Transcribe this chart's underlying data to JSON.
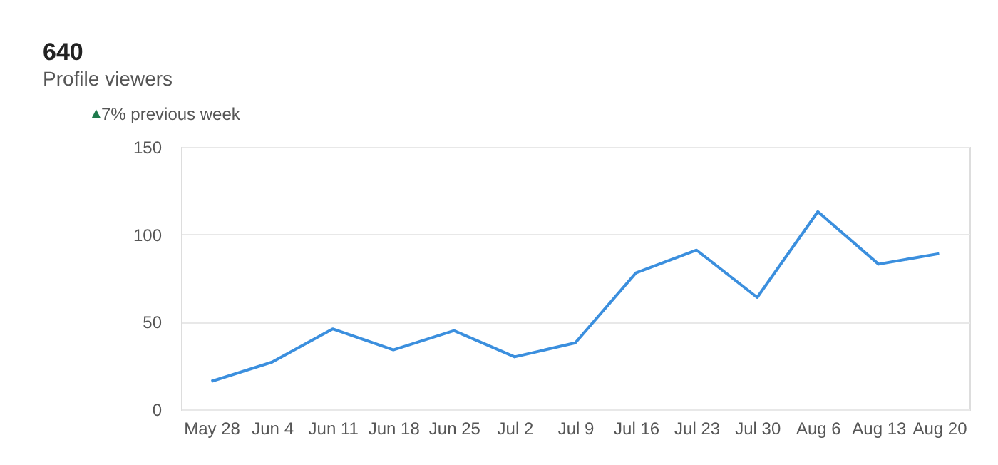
{
  "chart_data": {
    "type": "line",
    "title": "640",
    "subtitle": "Profile viewers",
    "annotations": [
      "▲7% previous week"
    ],
    "categories": [
      "May 28",
      "Jun 4",
      "Jun 11",
      "Jun 18",
      "Jun 25",
      "Jul 2",
      "Jul 9",
      "Jul 16",
      "Jul 23",
      "Jul 30",
      "Aug 6",
      "Aug 13",
      "Aug 20"
    ],
    "series": [
      {
        "color": "#3b8fde",
        "values": [
          16,
          27,
          46,
          34,
          45,
          30,
          38,
          78,
          91,
          64,
          113,
          83,
          89
        ]
      }
    ],
    "ylim": [
      0,
      150
    ],
    "yticks": [
      0,
      50,
      100,
      150
    ],
    "grid": "y",
    "marker": "none",
    "line_style": "solid"
  }
}
